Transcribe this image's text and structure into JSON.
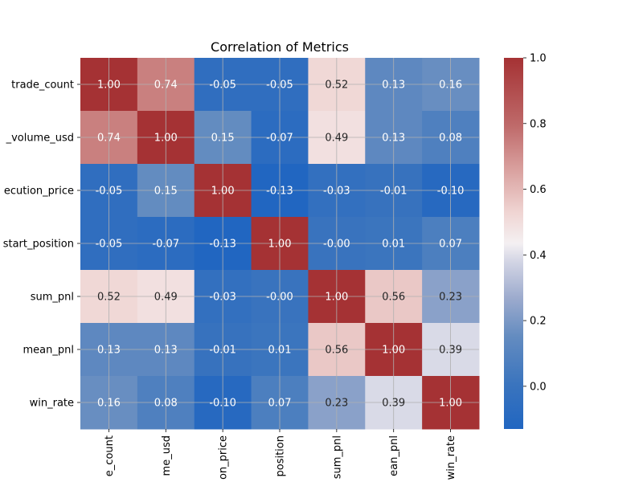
{
  "chart_data": {
    "type": "heatmap",
    "title": "Correlation of Metrics",
    "row_labels": [
      "trade_count",
      "_volume_usd",
      "ecution_price",
      "start_position",
      "sum_pnl",
      "mean_pnl",
      "win_rate"
    ],
    "col_labels": [
      "e_count",
      "me_usd",
      "on_price",
      "position",
      "sum_pnl",
      "ean_pnl",
      "win_rate"
    ],
    "values": [
      [
        1.0,
        0.74,
        -0.05,
        -0.05,
        0.52,
        0.13,
        0.16
      ],
      [
        0.74,
        1.0,
        0.15,
        -0.07,
        0.49,
        0.13,
        0.08
      ],
      [
        -0.05,
        0.15,
        1.0,
        -0.13,
        -0.03,
        -0.01,
        -0.1
      ],
      [
        -0.05,
        -0.07,
        -0.13,
        1.0,
        -0.0,
        0.01,
        0.07
      ],
      [
        0.52,
        0.49,
        -0.03,
        -0.0,
        1.0,
        0.56,
        0.23
      ],
      [
        0.13,
        0.13,
        -0.01,
        0.01,
        0.56,
        1.0,
        0.39
      ],
      [
        0.16,
        0.08,
        -0.1,
        0.07,
        0.23,
        0.39,
        1.0
      ]
    ],
    "value_labels": [
      [
        "1.00",
        "0.74",
        "-0.05",
        "-0.05",
        "0.52",
        "0.13",
        "0.16"
      ],
      [
        "0.74",
        "1.00",
        "0.15",
        "-0.07",
        "0.49",
        "0.13",
        "0.08"
      ],
      [
        "-0.05",
        "0.15",
        "1.00",
        "-0.13",
        "-0.03",
        "-0.01",
        "-0.10"
      ],
      [
        "-0.05",
        "-0.07",
        "-0.13",
        "1.00",
        "-0.00",
        "0.01",
        "0.07"
      ],
      [
        "0.52",
        "0.49",
        "-0.03",
        "-0.00",
        "1.00",
        "0.56",
        "0.23"
      ],
      [
        "0.13",
        "0.13",
        "-0.01",
        "0.01",
        "0.56",
        "1.00",
        "0.39"
      ],
      [
        "0.16",
        "0.08",
        "-0.10",
        "0.07",
        "0.23",
        "0.39",
        "1.00"
      ]
    ],
    "colorbar": {
      "vmin": -0.13,
      "vmax": 1.0,
      "ticks": [
        0.0,
        0.2,
        0.4,
        0.6,
        0.8,
        1.0
      ],
      "tick_labels": [
        "0.0",
        "0.2",
        "0.4",
        "0.6",
        "0.8",
        "1.0"
      ]
    },
    "colormap": "vlag",
    "grid": true
  }
}
